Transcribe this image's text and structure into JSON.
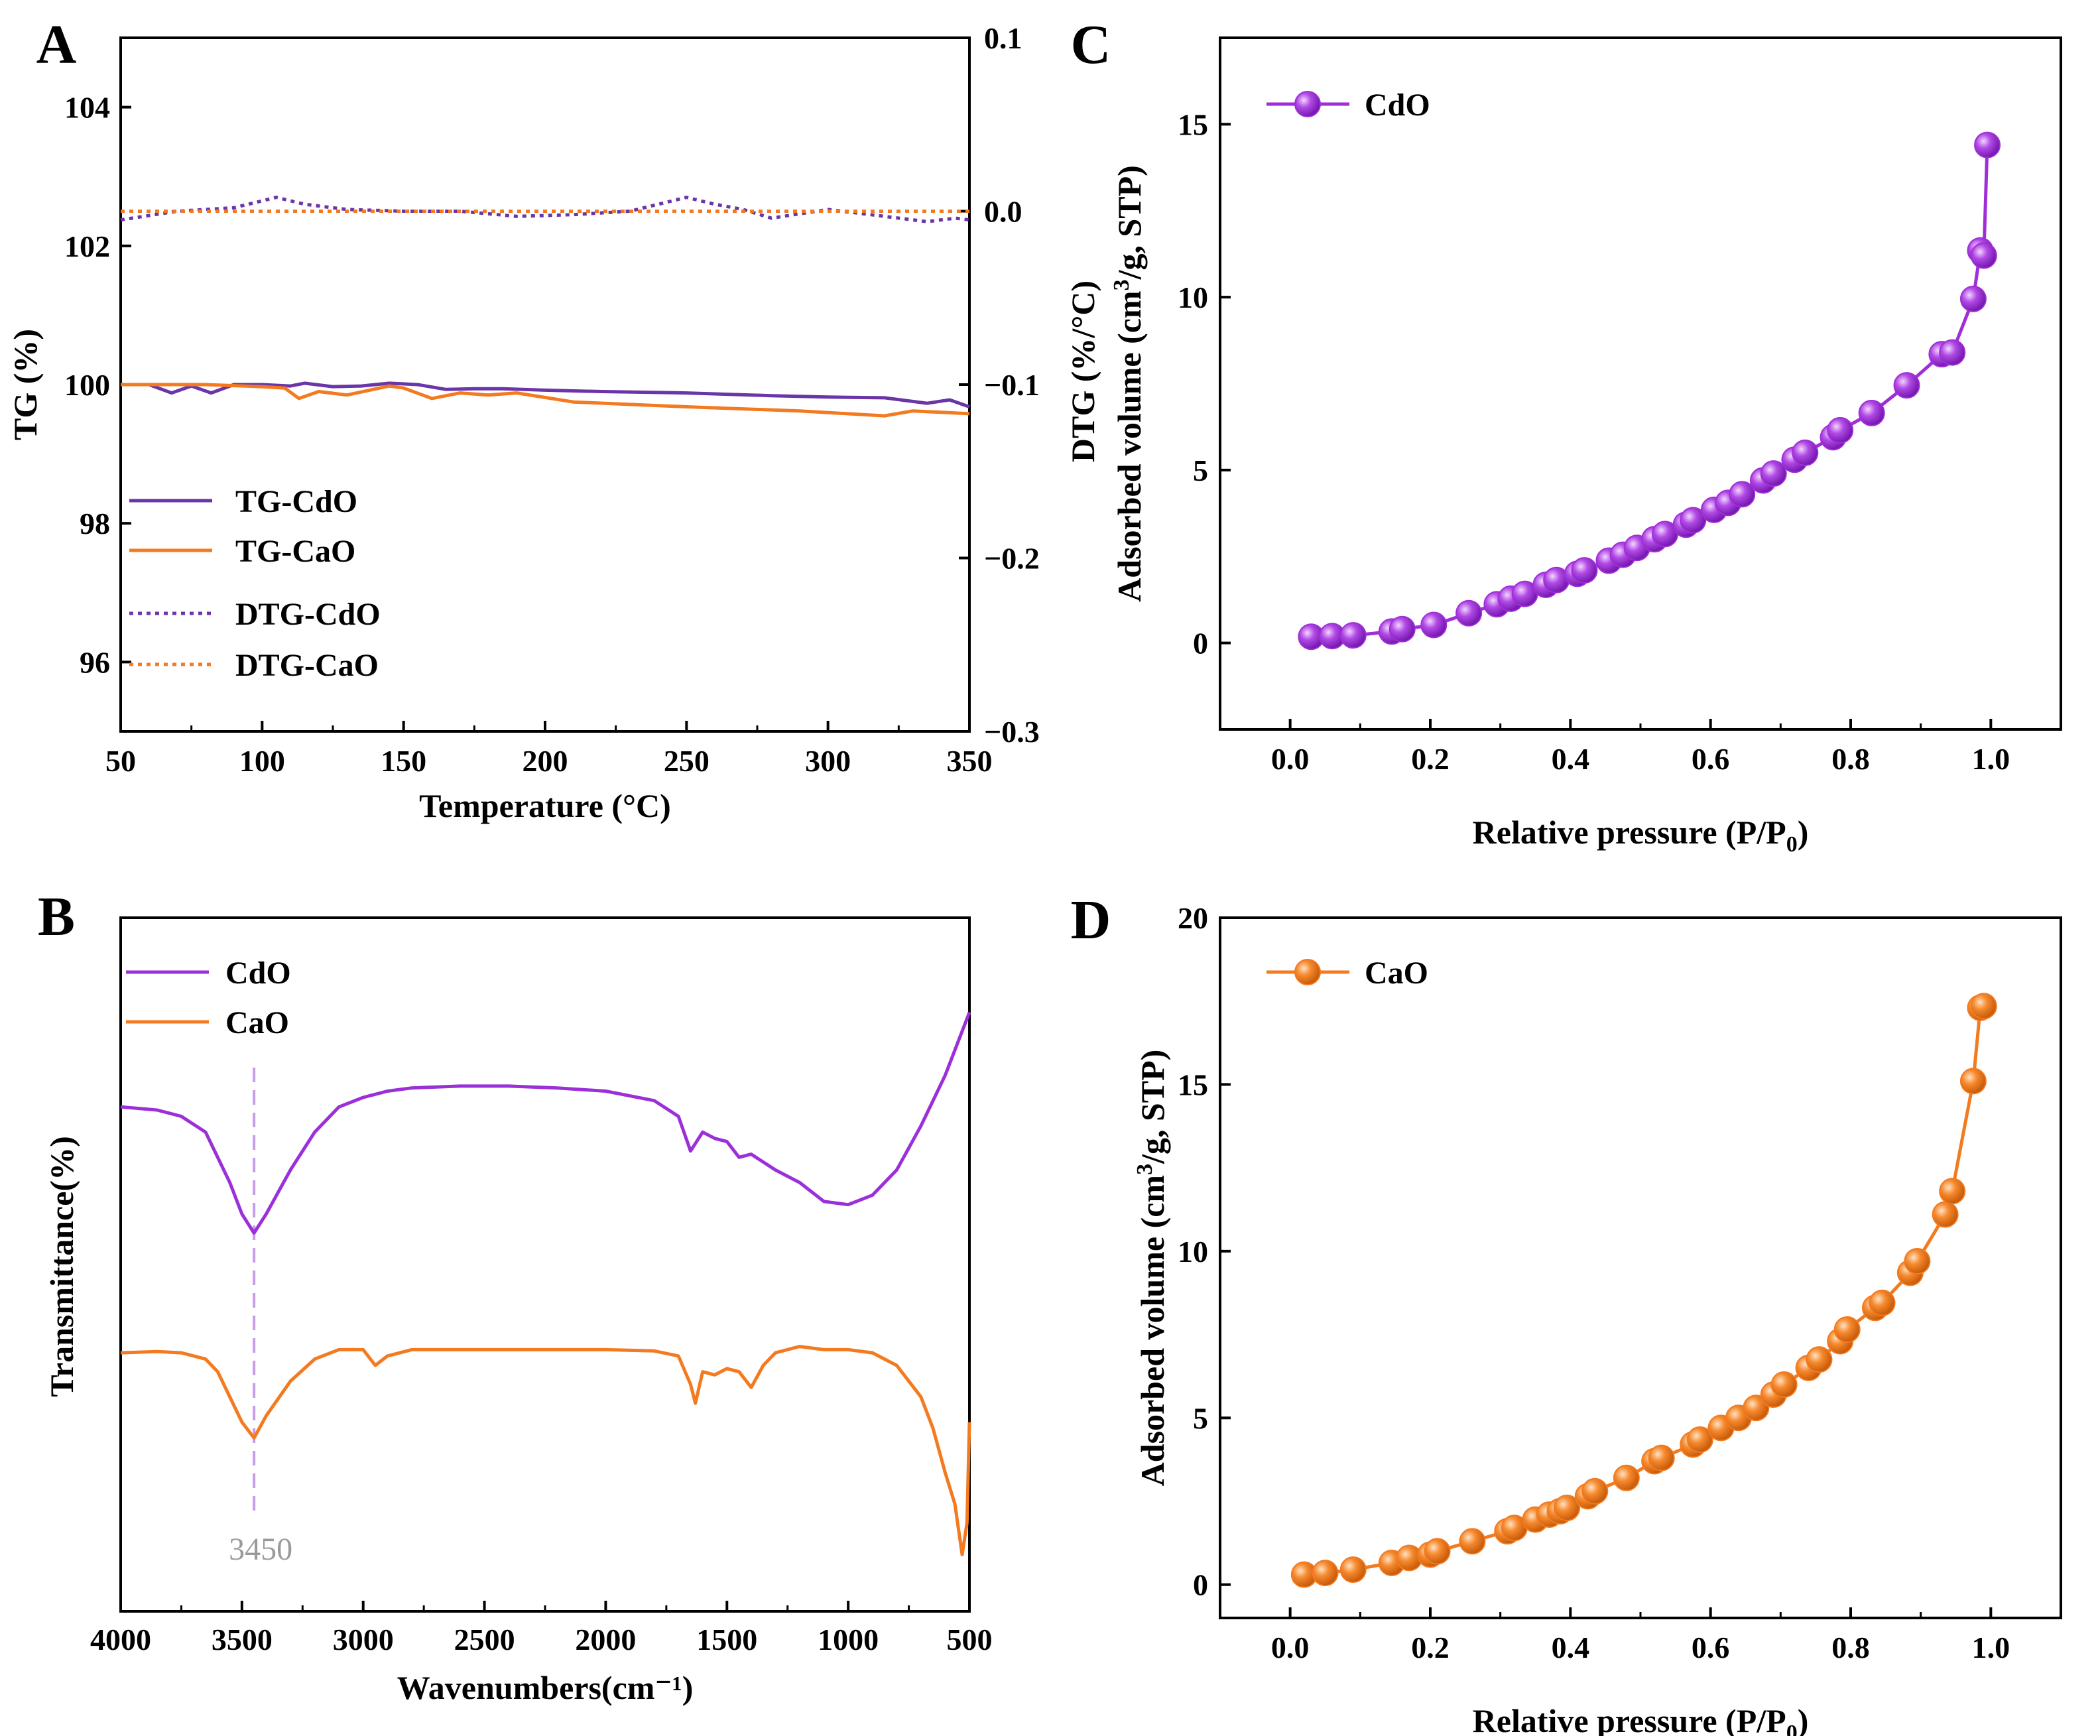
{
  "chart_data": [
    {
      "panel": "A",
      "type": "line",
      "xlabel": "Temperature (°C)",
      "ylabel": "TG (%)",
      "y2label": "DTG (%/°C)",
      "xlim": [
        50,
        350
      ],
      "ylim": [
        95,
        105
      ],
      "y2lim": [
        -0.3,
        0.1
      ],
      "xticks": [
        "50",
        "100",
        "150",
        "200",
        "250",
        "300",
        "350"
      ],
      "yticks": [
        "96",
        "98",
        "100",
        "102",
        "104"
      ],
      "y2ticks": [
        "0.1",
        "0.0",
        "−0.1",
        "−0.2",
        "−0.3"
      ],
      "legend_position": "center-left",
      "series": [
        {
          "name": "TG-CdO",
          "axis": "left",
          "style": "solid",
          "color": "#6a35a8",
          "x": [
            50,
            60,
            68,
            75,
            82,
            90,
            100,
            110,
            115,
            125,
            135,
            145,
            155,
            165,
            175,
            185,
            200,
            220,
            250,
            280,
            300,
            320,
            335,
            343,
            350
          ],
          "y": [
            100,
            100,
            99.88,
            99.98,
            99.88,
            100,
            100,
            99.98,
            100.02,
            99.97,
            99.98,
            100.02,
            100.0,
            99.93,
            99.94,
            99.94,
            99.92,
            99.9,
            99.88,
            99.84,
            99.82,
            99.81,
            99.73,
            99.78,
            99.68
          ]
        },
        {
          "name": "TG-CaO",
          "axis": "left",
          "style": "solid",
          "color": "#f47a20",
          "x": [
            50,
            80,
            100,
            108,
            113,
            120,
            130,
            145,
            150,
            160,
            170,
            180,
            190,
            210,
            250,
            290,
            320,
            330,
            340,
            350
          ],
          "y": [
            100,
            100,
            99.97,
            99.95,
            99.8,
            99.9,
            99.85,
            99.98,
            99.95,
            99.8,
            99.88,
            99.85,
            99.88,
            99.75,
            99.68,
            99.62,
            99.55,
            99.62,
            99.6,
            99.58
          ]
        },
        {
          "name": "DTG-CdO",
          "axis": "right",
          "style": "dotted",
          "color": "#6a35a8",
          "x": [
            50,
            70,
            90,
            105,
            115,
            130,
            150,
            170,
            190,
            210,
            230,
            250,
            260,
            270,
            280,
            300,
            320,
            335,
            345,
            350
          ],
          "y": [
            -0.005,
            0.0,
            0.002,
            0.008,
            0.004,
            0.001,
            0.0,
            0.0,
            -0.003,
            -0.002,
            0.0,
            0.008,
            0.004,
            0.001,
            -0.004,
            0.001,
            -0.003,
            -0.006,
            -0.004,
            -0.005
          ]
        },
        {
          "name": "DTG-CaO",
          "axis": "right",
          "style": "dotted",
          "color": "#f47a20",
          "x": [
            50,
            350
          ],
          "y": [
            0.0,
            0.0
          ]
        }
      ]
    },
    {
      "panel": "B",
      "type": "line",
      "xlabel": "Wavenumbers(cm⁻¹)",
      "ylabel": "Transmittance(%)",
      "xlim": [
        4000,
        500
      ],
      "xticks": [
        "4000",
        "3500",
        "3000",
        "2500",
        "2000",
        "1500",
        "1000",
        "500"
      ],
      "annotation": "3450",
      "annotation_x": 3450,
      "legend_position": "top-left",
      "series": [
        {
          "name": "CdO",
          "color": "#9b30d9",
          "x": [
            4000,
            3850,
            3750,
            3650,
            3550,
            3500,
            3450,
            3400,
            3300,
            3200,
            3100,
            3000,
            2900,
            2800,
            2600,
            2400,
            2200,
            2000,
            1800,
            1700,
            1650,
            1600,
            1550,
            1500,
            1450,
            1400,
            1300,
            1200,
            1100,
            1000,
            900,
            800,
            700,
            600,
            500
          ],
          "y": [
            80,
            79.5,
            78.5,
            76,
            68,
            63,
            60,
            63,
            70,
            76,
            80,
            81.5,
            82.5,
            83,
            83.3,
            83.3,
            83,
            82.5,
            81,
            78.5,
            73,
            76,
            75,
            74.5,
            72,
            72.5,
            70,
            68,
            65,
            64.5,
            66,
            70,
            77,
            85,
            95
          ]
        },
        {
          "name": "CaO",
          "color": "#f47a20",
          "x": [
            4000,
            3850,
            3750,
            3650,
            3600,
            3550,
            3500,
            3450,
            3400,
            3300,
            3200,
            3100,
            3000,
            2950,
            2900,
            2800,
            2600,
            2400,
            2200,
            2000,
            1800,
            1700,
            1650,
            1630,
            1600,
            1550,
            1500,
            1450,
            1400,
            1350,
            1300,
            1200,
            1100,
            1000,
            900,
            800,
            700,
            650,
            600,
            560,
            530,
            510,
            500
          ],
          "y": [
            41,
            41.2,
            41,
            40,
            38,
            34,
            30,
            27.5,
            31,
            36.5,
            40,
            41.5,
            41.5,
            39,
            40.5,
            41.5,
            41.5,
            41.5,
            41.5,
            41.5,
            41.3,
            40.5,
            36,
            33,
            38,
            37.5,
            38.5,
            38,
            35.5,
            39,
            41,
            42,
            41.5,
            41.5,
            41,
            39,
            34,
            29,
            22,
            17,
            9,
            14,
            30
          ]
        }
      ]
    },
    {
      "panel": "C",
      "type": "scatter",
      "xlabel": "Relative pressure (P/P0)",
      "ylabel": "Adsorbed volume (cm3/g, STP)",
      "xlim": [
        -0.1,
        1.1
      ],
      "ylim": [
        -2.5,
        17.5
      ],
      "xticks": [
        "0.0",
        "0.2",
        "0.4",
        "0.6",
        "0.8",
        "1.0"
      ],
      "yticks": [
        "0",
        "5",
        "10",
        "15"
      ],
      "legend_position": "top-left",
      "series": [
        {
          "name": "CdO",
          "color": "#a02ed8",
          "marker": "sphere",
          "x": [
            0.03,
            0.06,
            0.09,
            0.145,
            0.16,
            0.205,
            0.255,
            0.295,
            0.315,
            0.335,
            0.365,
            0.38,
            0.41,
            0.42,
            0.455,
            0.475,
            0.495,
            0.52,
            0.535,
            0.565,
            0.575,
            0.605,
            0.625,
            0.645,
            0.675,
            0.69,
            0.72,
            0.735,
            0.775,
            0.785,
            0.83,
            0.88,
            0.93,
            0.945,
            0.975,
            0.985,
            0.99,
            0.995
          ],
          "y": [
            0.18,
            0.2,
            0.22,
            0.33,
            0.4,
            0.52,
            0.86,
            1.12,
            1.28,
            1.42,
            1.68,
            1.82,
            2.0,
            2.1,
            2.38,
            2.55,
            2.75,
            3.0,
            3.15,
            3.42,
            3.55,
            3.85,
            4.05,
            4.3,
            4.7,
            4.9,
            5.3,
            5.5,
            5.95,
            6.15,
            6.65,
            7.45,
            8.35,
            8.4,
            9.95,
            11.35,
            11.2,
            14.4
          ]
        }
      ]
    },
    {
      "panel": "D",
      "type": "scatter",
      "xlabel": "Relative pressure (P/P0)",
      "ylabel": "Adsorbed volume (cm3/g, STP)",
      "xlim": [
        -0.1,
        1.1
      ],
      "ylim": [
        -1.0,
        20.0
      ],
      "xticks": [
        "0.0",
        "0.2",
        "0.4",
        "0.6",
        "0.8",
        "1.0"
      ],
      "yticks": [
        "0",
        "5",
        "10",
        "15",
        "20"
      ],
      "legend_position": "top-left",
      "series": [
        {
          "name": "CaO",
          "color": "#f47a20",
          "marker": "sphere",
          "x": [
            0.02,
            0.05,
            0.09,
            0.145,
            0.17,
            0.2,
            0.21,
            0.26,
            0.31,
            0.32,
            0.35,
            0.37,
            0.385,
            0.395,
            0.425,
            0.435,
            0.48,
            0.52,
            0.53,
            0.575,
            0.585,
            0.615,
            0.64,
            0.665,
            0.69,
            0.705,
            0.74,
            0.755,
            0.785,
            0.795,
            0.835,
            0.845,
            0.885,
            0.895,
            0.935,
            0.945,
            0.975,
            0.985,
            0.99
          ],
          "y": [
            0.3,
            0.35,
            0.45,
            0.65,
            0.8,
            0.9,
            1.0,
            1.3,
            1.6,
            1.7,
            1.95,
            2.1,
            2.2,
            2.3,
            2.65,
            2.8,
            3.2,
            3.7,
            3.8,
            4.2,
            4.35,
            4.7,
            5.0,
            5.3,
            5.7,
            6.0,
            6.5,
            6.75,
            7.3,
            7.65,
            8.3,
            8.45,
            9.35,
            9.7,
            11.1,
            11.8,
            15.1,
            17.3,
            17.35
          ]
        }
      ]
    }
  ]
}
